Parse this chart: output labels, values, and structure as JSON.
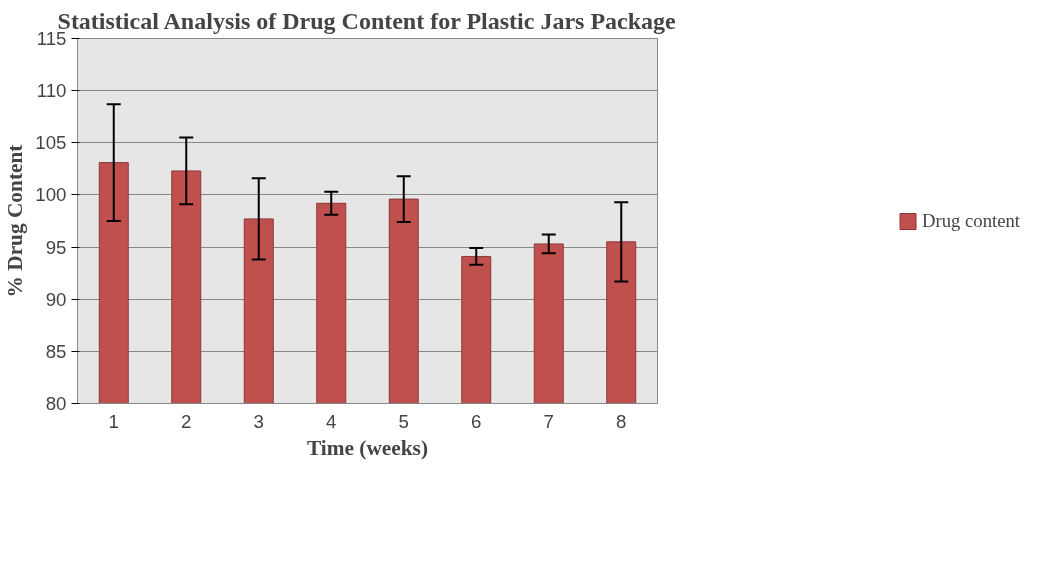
{
  "chart_data": {
    "type": "bar",
    "title": "Statistical Analysis of Drug Content for Plastic Jars Package",
    "xlabel": "Time (weeks)",
    "ylabel": "% Drug Content",
    "categories": [
      "1",
      "2",
      "3",
      "4",
      "5",
      "6",
      "7",
      "8"
    ],
    "series": [
      {
        "name": "Drug content",
        "color": "#c0504d",
        "values": [
          103.1,
          102.3,
          97.7,
          99.2,
          99.6,
          94.1,
          95.3,
          95.5
        ],
        "errors": [
          5.6,
          3.2,
          3.9,
          1.1,
          2.2,
          0.8,
          0.9,
          3.8
        ]
      }
    ],
    "ylim": [
      80,
      115
    ],
    "yticks": [
      80,
      85,
      90,
      95,
      100,
      105,
      110,
      115
    ],
    "grid": "y",
    "legend": "right"
  }
}
